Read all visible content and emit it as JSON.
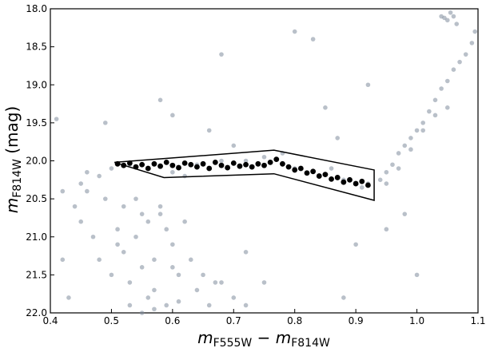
{
  "chart_data": {
    "type": "scatter",
    "xlabel": [
      "m",
      "F555W",
      " − ",
      "m",
      "F814W"
    ],
    "ylabel": [
      "m",
      "F814W",
      " (mag)"
    ],
    "xlim": [
      0.4,
      1.1
    ],
    "ylim": [
      22.0,
      18.0
    ],
    "xticks": [
      0.4,
      0.5,
      0.6,
      0.7,
      0.8,
      0.9,
      {
        "value": 1.0,
        "label": "1.0"
      },
      1.1
    ],
    "yticks": [
      {
        "value": 18.0,
        "label": "18.0"
      },
      18.5,
      {
        "value": 19.0,
        "label": "19.0"
      },
      19.5,
      {
        "value": 20.0,
        "label": "20.0"
      },
      20.5,
      {
        "value": 21.0,
        "label": "21.0"
      },
      21.5,
      {
        "value": 22.0,
        "label": "22.0"
      }
    ],
    "y_inverted": true,
    "series": [
      {
        "color": "#7f8c9c",
        "x": [
          0.52,
          0.54,
          0.56,
          0.58,
          0.55,
          0.53,
          0.57,
          0.6,
          0.5,
          0.48,
          0.51,
          0.55,
          0.59,
          0.62,
          0.56,
          0.53,
          0.57,
          0.61,
          0.64,
          0.66,
          0.52,
          0.49,
          0.46,
          0.54,
          0.58,
          0.6,
          0.63,
          0.67,
          0.7,
          0.55,
          0.57,
          0.59,
          0.61,
          0.65,
          0.68,
          0.72,
          0.51,
          0.47,
          0.44,
          0.42,
          0.45,
          0.48,
          0.5,
          0.53,
          0.56,
          0.6,
          0.64,
          0.68,
          0.72,
          0.75,
          0.8,
          0.84,
          0.88,
          0.91,
          0.42,
          0.46,
          0.62,
          0.7,
          0.78,
          0.86,
          0.92,
          0.94,
          0.95,
          0.96,
          0.97,
          0.98,
          0.99,
          1.0,
          1.01,
          1.02,
          1.03,
          1.04,
          1.05,
          1.06,
          1.07,
          1.08,
          1.09,
          1.095,
          0.95,
          0.97,
          0.99,
          1.01,
          1.03,
          1.05,
          1.04,
          1.05,
          1.06,
          1.055,
          1.045,
          1.065,
          0.41,
          0.45,
          0.6,
          0.68,
          0.8,
          0.83,
          0.87,
          0.92,
          0.9,
          0.75,
          0.66,
          0.58,
          0.49,
          0.95,
          1.0,
          0.88,
          0.72,
          0.43,
          0.85,
          0.98
        ],
        "values": [
          21.2,
          21.0,
          20.8,
          20.6,
          21.4,
          21.6,
          21.3,
          21.1,
          21.5,
          21.3,
          20.9,
          20.7,
          20.9,
          20.8,
          21.8,
          21.9,
          21.7,
          21.5,
          21.7,
          21.9,
          20.6,
          20.5,
          20.4,
          20.5,
          20.7,
          21.4,
          21.3,
          21.6,
          21.8,
          22.0,
          21.95,
          21.9,
          21.85,
          21.5,
          21.6,
          21.9,
          21.1,
          21.0,
          20.6,
          21.3,
          20.3,
          20.2,
          20.1,
          20.05,
          20.1,
          20.15,
          20.05,
          20.0,
          20.0,
          19.95,
          20.1,
          20.2,
          20.25,
          20.35,
          20.4,
          20.15,
          20.2,
          19.8,
          19.9,
          20.1,
          20.3,
          20.25,
          20.15,
          20.05,
          19.9,
          19.8,
          19.7,
          19.6,
          19.5,
          19.35,
          19.2,
          19.05,
          18.95,
          18.8,
          18.7,
          18.6,
          18.45,
          18.3,
          20.3,
          20.1,
          19.85,
          19.6,
          19.4,
          19.3,
          18.1,
          18.15,
          18.1,
          18.05,
          18.12,
          18.2,
          19.45,
          20.8,
          19.4,
          18.6,
          18.3,
          18.4,
          19.7,
          19.0,
          21.1,
          21.6,
          19.6,
          19.2,
          19.5,
          20.9,
          21.5,
          21.8,
          21.2,
          21.8,
          19.3,
          20.7
        ]
      },
      {
        "color": "#000000",
        "x": [
          0.51,
          0.52,
          0.53,
          0.54,
          0.55,
          0.56,
          0.57,
          0.58,
          0.59,
          0.6,
          0.61,
          0.62,
          0.63,
          0.64,
          0.65,
          0.66,
          0.67,
          0.68,
          0.69,
          0.7,
          0.71,
          0.72,
          0.73,
          0.74,
          0.75,
          0.76,
          0.77,
          0.78,
          0.79,
          0.8,
          0.81,
          0.82,
          0.83,
          0.84,
          0.85,
          0.86,
          0.87,
          0.88,
          0.89,
          0.9,
          0.91,
          0.92
        ],
        "values": [
          20.04,
          20.06,
          20.03,
          20.08,
          20.05,
          20.1,
          20.04,
          20.07,
          20.02,
          20.06,
          20.09,
          20.03,
          20.05,
          20.08,
          20.04,
          20.1,
          20.02,
          20.06,
          20.09,
          20.03,
          20.07,
          20.05,
          20.08,
          20.04,
          20.06,
          20.02,
          19.98,
          20.04,
          20.08,
          20.12,
          20.1,
          20.16,
          20.14,
          20.2,
          20.18,
          20.24,
          20.22,
          20.28,
          20.25,
          20.3,
          20.27,
          20.32
        ]
      }
    ],
    "selection_polygon": {
      "x": [
        0.505,
        0.766,
        0.93,
        0.93,
        0.766,
        0.586
      ],
      "y": [
        20.02,
        19.86,
        20.12,
        20.52,
        20.17,
        20.22
      ]
    }
  }
}
